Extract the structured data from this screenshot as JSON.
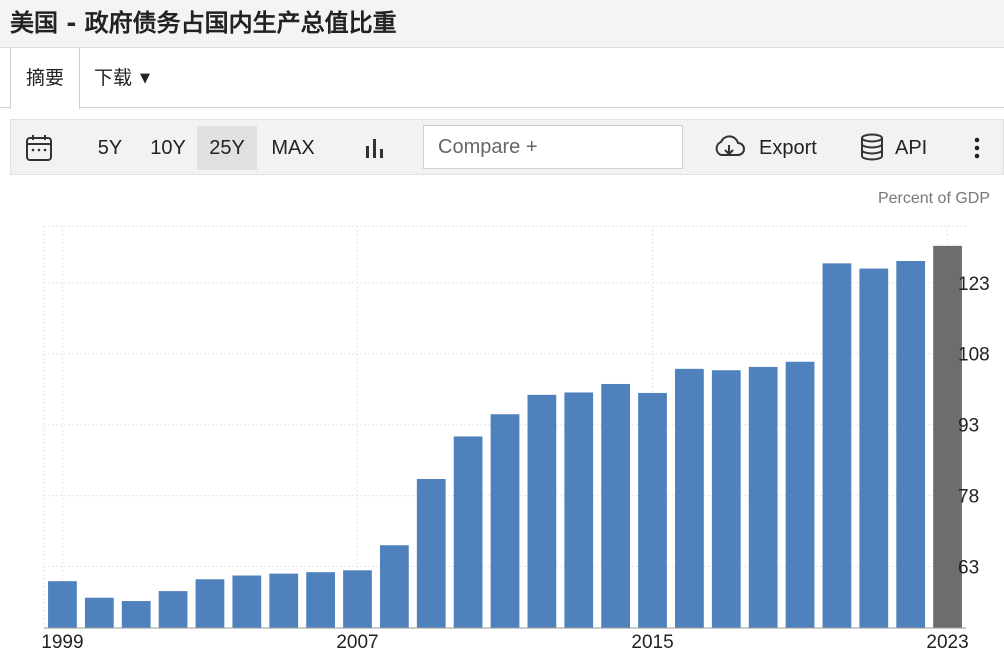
{
  "page": {
    "title": "美国 - 政府债务占国内生产总值比重"
  },
  "tabs": {
    "summary_label": "摘要",
    "download_label": "下载"
  },
  "toolbar": {
    "icons": [
      "calendar-icon",
      "bar-chart-icon",
      "cloud-download-icon",
      "database-icon",
      "more-vertical-icon"
    ],
    "ranges": [
      {
        "label": "5Y",
        "active": false
      },
      {
        "label": "10Y",
        "active": false
      },
      {
        "label": "25Y",
        "active": true
      },
      {
        "label": "MAX",
        "active": false
      }
    ],
    "compare_placeholder": "Compare +",
    "export_label": "Export",
    "api_label": "API"
  },
  "chart_data": {
    "type": "bar",
    "unit_label": "Percent of GDP",
    "categories": [
      "1999",
      "2000",
      "2001",
      "2002",
      "2003",
      "2004",
      "2005",
      "2006",
      "2007",
      "2008",
      "2009",
      "2010",
      "2011",
      "2012",
      "2013",
      "2014",
      "2015",
      "2016",
      "2017",
      "2018",
      "2019",
      "2020",
      "2021",
      "2022",
      "2023"
    ],
    "values": [
      59.9,
      56.4,
      55.7,
      57.8,
      60.3,
      61.1,
      61.5,
      61.8,
      62.2,
      67.5,
      81.5,
      90.5,
      95.2,
      99.3,
      99.8,
      101.6,
      99.7,
      104.8,
      104.5,
      105.2,
      106.3,
      127.1,
      126.0,
      127.6,
      130.8
    ],
    "bar_colors": {
      "default": "#4f81bd",
      "latest": "#6d6d6d"
    },
    "x_tick_labels": [
      "1999",
      "2007",
      "2015",
      "2023"
    ],
    "y_ticks": [
      63,
      78,
      93,
      108,
      123
    ],
    "ylim": [
      50,
      135
    ],
    "y_axis_position": "right",
    "grid": true,
    "legend": "none"
  }
}
